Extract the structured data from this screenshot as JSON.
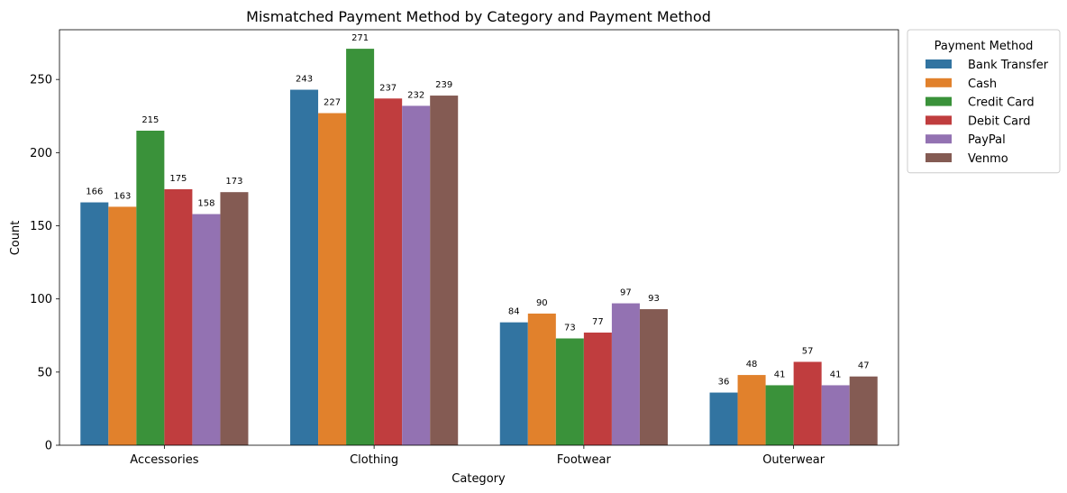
{
  "chart_data": {
    "type": "bar",
    "title": "Mismatched Payment Method by Category and Payment Method",
    "xlabel": "Category",
    "ylabel": "Count",
    "ylim": [
      0,
      284
    ],
    "yticks": [
      0,
      50,
      100,
      150,
      200,
      250
    ],
    "categories": [
      "Accessories",
      "Clothing",
      "Footwear",
      "Outerwear"
    ],
    "legend": {
      "title": "Payment Method",
      "placement": "outside-top-right"
    },
    "series": [
      {
        "name": "Bank Transfer",
        "color": "#3274a1",
        "values": [
          166,
          243,
          84,
          36
        ]
      },
      {
        "name": "Cash",
        "color": "#e1812c",
        "values": [
          163,
          227,
          90,
          48
        ]
      },
      {
        "name": "Credit Card",
        "color": "#3a923a",
        "values": [
          215,
          271,
          73,
          41
        ]
      },
      {
        "name": "Debit Card",
        "color": "#c03d3e",
        "values": [
          175,
          237,
          77,
          57
        ]
      },
      {
        "name": "PayPal",
        "color": "#9372b2",
        "values": [
          158,
          232,
          97,
          41
        ]
      },
      {
        "name": "Venmo",
        "color": "#845b53",
        "values": [
          173,
          239,
          93,
          47
        ]
      }
    ]
  }
}
